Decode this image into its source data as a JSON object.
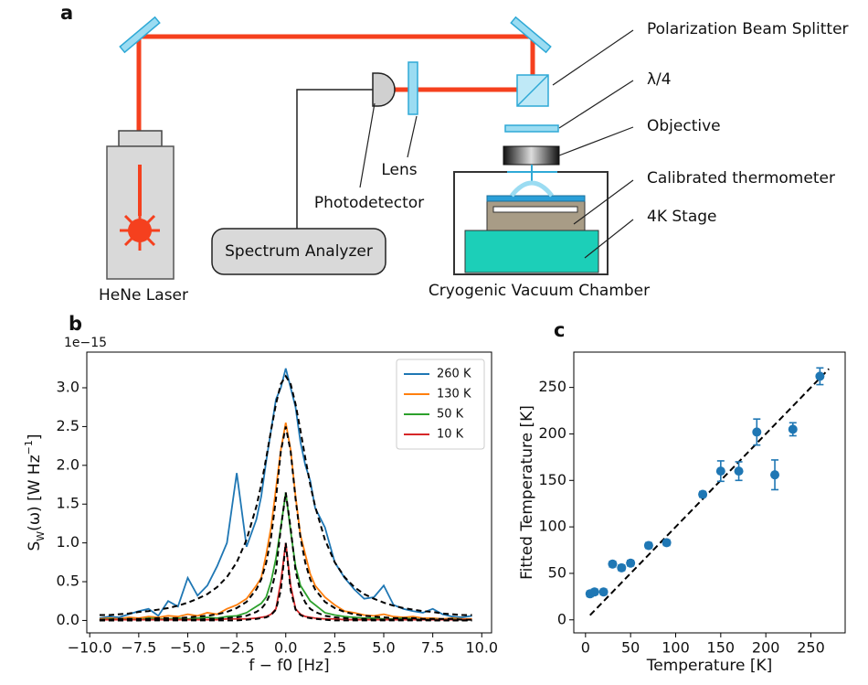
{
  "diagram": {
    "panel_label": "a",
    "labels": {
      "laser": "HeNe Laser",
      "analyzer": "Spectrum Analyzer",
      "photodetector": "Photodetector",
      "lens": "Lens",
      "splitter": "Polarization Beam Splitter",
      "waveplate": "λ/4",
      "objective": "Objective",
      "thermometer": "Calibrated thermometer",
      "stage": "4K Stage",
      "chamber": "Cryogenic Vacuum Chamber"
    }
  },
  "chart_data": [
    {
      "type": "line",
      "panel_label": "b",
      "offset_label": "1e−15",
      "x_label": "f − f0 [Hz]",
      "y_label": [
        "S",
        "W",
        "(ω) [W Hz",
        "−1",
        "]"
      ],
      "x": [
        -9.5,
        -9,
        -8.5,
        -8,
        -7.5,
        -7,
        -6.5,
        -6,
        -5.5,
        -5,
        -4.5,
        -4,
        -3.5,
        -3,
        -2.5,
        -2,
        -1.5,
        -1.25,
        -1,
        -0.75,
        -0.5,
        -0.25,
        0,
        0.25,
        0.5,
        0.75,
        1,
        1.25,
        1.5,
        2,
        2.5,
        3,
        3.5,
        4,
        4.5,
        5,
        5.5,
        6,
        6.5,
        7,
        7.5,
        8,
        8.5,
        9,
        9.5
      ],
      "xlim": [
        -10.15,
        10.5
      ],
      "ylim": [
        -0.16,
        3.46
      ],
      "xticks": [
        {
          "value": -10,
          "label": "−10.0"
        },
        {
          "value": -7.5,
          "label": "−7.5"
        },
        {
          "value": -5,
          "label": "−5.0"
        },
        {
          "value": -2.5,
          "label": "−2.5"
        },
        {
          "value": 0,
          "label": "0.0"
        },
        {
          "value": 2.5,
          "label": "2.5"
        },
        {
          "value": 5,
          "label": "5.0"
        },
        {
          "value": 7.5,
          "label": "7.5"
        },
        {
          "value": 10,
          "label": "10.0"
        }
      ],
      "yticks": [
        {
          "value": 0,
          "label": "0.0"
        },
        0.5,
        {
          "value": 1,
          "label": "1.0"
        },
        1.5,
        {
          "value": 2,
          "label": "2.0"
        },
        2.5,
        {
          "value": 3,
          "label": "3.0"
        }
      ],
      "legend": "upper right",
      "series": [
        {
          "name": "260 K",
          "color": "#1f77b4",
          "values": [
            0.03,
            0.05,
            0.04,
            0.08,
            0.12,
            0.15,
            0.06,
            0.25,
            0.18,
            0.55,
            0.32,
            0.45,
            0.7,
            1.0,
            1.9,
            0.95,
            1.3,
            1.6,
            2.05,
            2.45,
            2.85,
            3.0,
            3.25,
            3.0,
            2.75,
            2.3,
            2.0,
            1.8,
            1.45,
            1.2,
            0.75,
            0.55,
            0.4,
            0.28,
            0.3,
            0.45,
            0.2,
            0.15,
            0.12,
            0.1,
            0.15,
            0.08,
            0.05,
            0.04,
            0.06
          ]
        },
        {
          "name": "130 K",
          "color": "#ff7f0e",
          "values": [
            0.02,
            0.03,
            0.02,
            0.04,
            0.03,
            0.05,
            0.04,
            0.06,
            0.05,
            0.08,
            0.06,
            0.1,
            0.08,
            0.15,
            0.2,
            0.28,
            0.45,
            0.55,
            0.85,
            1.2,
            1.7,
            2.2,
            2.55,
            2.2,
            1.6,
            1.1,
            0.85,
            0.6,
            0.45,
            0.3,
            0.2,
            0.12,
            0.1,
            0.07,
            0.06,
            0.08,
            0.05,
            0.04,
            0.05,
            0.03,
            0.03,
            0.02,
            0.03,
            0.02,
            0.02
          ]
        },
        {
          "name": "50 K",
          "color": "#2ca02c",
          "values": [
            0.01,
            0.02,
            0.01,
            0.02,
            0.01,
            0.03,
            0.02,
            0.02,
            0.03,
            0.02,
            0.03,
            0.04,
            0.03,
            0.05,
            0.06,
            0.1,
            0.18,
            0.22,
            0.3,
            0.5,
            0.8,
            1.2,
            1.65,
            1.15,
            0.7,
            0.45,
            0.35,
            0.25,
            0.2,
            0.1,
            0.07,
            0.05,
            0.04,
            0.03,
            0.03,
            0.02,
            0.02,
            0.03,
            0.02,
            0.01,
            0.02,
            0.01,
            0.02,
            0.01,
            0.01
          ]
        },
        {
          "name": "10 K",
          "color": "#d62728",
          "values": [
            0.01,
            0.01,
            0.01,
            0.01,
            0.01,
            0.01,
            0.01,
            0.01,
            0.01,
            0.01,
            0.01,
            0.01,
            0.01,
            0.02,
            0.02,
            0.02,
            0.03,
            0.04,
            0.05,
            0.08,
            0.15,
            0.5,
            1.0,
            0.45,
            0.15,
            0.08,
            0.05,
            0.04,
            0.03,
            0.02,
            0.02,
            0.01,
            0.01,
            0.01,
            0.01,
            0.01,
            0.01,
            0.01,
            0.01,
            0.01,
            0.01,
            0.01,
            0.01,
            0.01,
            0.01
          ]
        },
        {
          "color": "#000000",
          "dashed": true,
          "values": [
            0.07,
            0.07,
            0.08,
            0.09,
            0.11,
            0.12,
            0.14,
            0.16,
            0.19,
            0.23,
            0.28,
            0.34,
            0.43,
            0.56,
            0.75,
            1.04,
            1.47,
            1.75,
            2.09,
            2.45,
            2.79,
            3.05,
            3.15,
            3.05,
            2.79,
            2.45,
            2.09,
            1.75,
            1.47,
            1.04,
            0.75,
            0.56,
            0.43,
            0.34,
            0.28,
            0.23,
            0.19,
            0.16,
            0.14,
            0.12,
            0.11,
            0.09,
            0.08,
            0.07,
            0.07
          ]
        },
        {
          "color": "#000000",
          "dashed": true,
          "values": [
            0.01,
            0.01,
            0.02,
            0.02,
            0.02,
            0.02,
            0.03,
            0.03,
            0.03,
            0.04,
            0.05,
            0.06,
            0.08,
            0.11,
            0.16,
            0.24,
            0.4,
            0.53,
            0.74,
            1.07,
            1.57,
            2.18,
            2.5,
            2.18,
            1.57,
            1.07,
            0.74,
            0.53,
            0.4,
            0.24,
            0.16,
            0.11,
            0.08,
            0.06,
            0.05,
            0.04,
            0.03,
            0.03,
            0.03,
            0.02,
            0.02,
            0.02,
            0.02,
            0.01,
            0.01
          ]
        },
        {
          "color": "#000000",
          "dashed": true,
          "values": [
            0,
            0,
            0,
            0,
            0,
            0.01,
            0.01,
            0.01,
            0.01,
            0.01,
            0.01,
            0.02,
            0.02,
            0.03,
            0.04,
            0.06,
            0.11,
            0.15,
            0.23,
            0.37,
            0.64,
            1.19,
            1.65,
            1.19,
            0.64,
            0.37,
            0.23,
            0.15,
            0.11,
            0.06,
            0.04,
            0.03,
            0.02,
            0.02,
            0.01,
            0.01,
            0.01,
            0.01,
            0.01,
            0.01,
            0,
            0,
            0,
            0,
            0
          ]
        },
        {
          "color": "#000000",
          "dashed": true,
          "values": [
            0,
            0,
            0,
            0,
            0,
            0,
            0,
            0,
            0,
            0,
            0,
            0,
            0,
            0,
            0,
            0.01,
            0.02,
            0.03,
            0.04,
            0.07,
            0.14,
            0.39,
            1.0,
            0.39,
            0.14,
            0.07,
            0.04,
            0.03,
            0.02,
            0.01,
            0,
            0,
            0,
            0,
            0,
            0,
            0,
            0,
            0,
            0,
            0,
            0,
            0,
            0,
            0
          ]
        }
      ]
    },
    {
      "type": "scatter",
      "panel_label": "c",
      "x_label": "Temperature [K]",
      "y_label": "Fitted Temperature [K]",
      "x": [
        5,
        10,
        20,
        30,
        40,
        50,
        70,
        90,
        130,
        150,
        170,
        190,
        210,
        230,
        260
      ],
      "values": [
        28,
        30,
        30,
        60,
        56,
        61,
        80,
        83,
        135,
        160,
        160,
        202,
        156,
        205,
        262
      ],
      "errors": [
        3,
        3,
        3,
        3,
        3,
        3,
        3,
        3,
        3,
        11,
        10,
        14,
        16,
        7,
        9
      ],
      "color": "#1f77b4",
      "fit": {
        "x": [
          5,
          270
        ],
        "values": [
          5,
          270
        ],
        "color": "#000000",
        "dashed": true
      },
      "xlim": [
        -13,
        288
      ],
      "ylim": [
        -14,
        288
      ],
      "xticks": [
        0,
        50,
        100,
        150,
        200,
        250
      ],
      "yticks": [
        0,
        50,
        100,
        150,
        200,
        250
      ]
    }
  ]
}
